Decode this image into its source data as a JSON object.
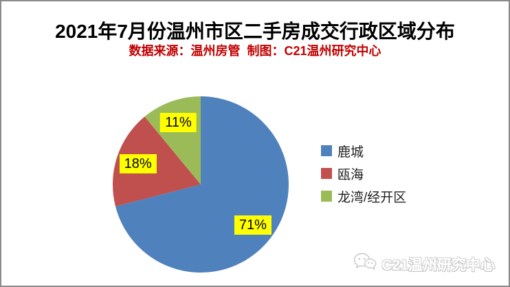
{
  "page": {
    "title": "2021年7月份温州市区二手房成交行政区域分布",
    "subtitle": "数据来源：温州房管  制图：C21温州研究中心",
    "watermark": "C21温州研究中心",
    "colors": {
      "title_text": "#000000",
      "subtitle_text": "#C00000",
      "data_label_bg": "#FFFF00",
      "frame_border": "#8A8A8A",
      "background": "#FFFFFF"
    }
  },
  "chart_data": {
    "type": "pie",
    "title": "2021年7月份温州市区二手房成交行政区域分布",
    "categories": [
      "鹿城",
      "瓯海",
      "龙湾/经开区"
    ],
    "series": [
      {
        "name": "鹿城",
        "value": 71,
        "label": "71%",
        "color": "#4F81BD"
      },
      {
        "name": "瓯海",
        "value": 18,
        "label": "18%",
        "color": "#C0504D"
      },
      {
        "name": "龙湾/经开区",
        "value": 11,
        "label": "11%",
        "color": "#9BBB59"
      }
    ],
    "data_labels": "percent",
    "start_angle_deg": 0,
    "direction": "clockwise",
    "legend_position": "right",
    "legend_entries": [
      "鹿城",
      "瓯海",
      "龙湾/经开区"
    ]
  }
}
